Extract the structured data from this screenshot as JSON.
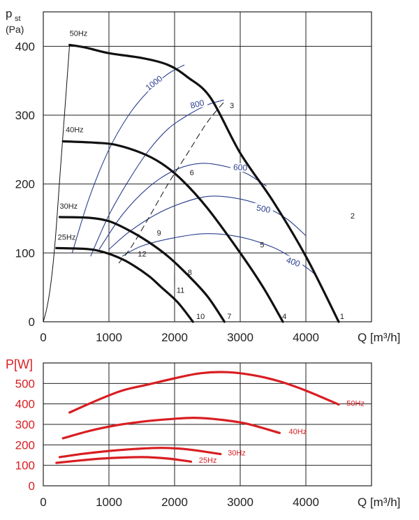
{
  "chart_data": [
    {
      "type": "line",
      "title": "",
      "ylabel_main": "p",
      "ylabel_sub": "st",
      "ylabel_unit": "(Pa)",
      "xlabel": "Q [m³/h]",
      "xlim": [
        0,
        5000
      ],
      "ylim": [
        0,
        450
      ],
      "xticks": [
        "0",
        "1000",
        "2000",
        "3000",
        "4000"
      ],
      "xtick_values": [
        0,
        1000,
        2000,
        3000,
        4000
      ],
      "yticks": [
        "0",
        "100",
        "200",
        "300",
        "400"
      ],
      "ytick_values": [
        0,
        100,
        200,
        300,
        400
      ],
      "series": [
        {
          "name": "50Hz",
          "x": [
            400,
            650,
            1000,
            1500,
            1900,
            2200,
            2550,
            3000,
            3500,
            4000,
            4500
          ],
          "y": [
            402,
            398,
            390,
            383,
            373,
            355,
            325,
            245,
            175,
            95,
            0
          ]
        },
        {
          "name": "40Hz",
          "x": [
            300,
            800,
            1100,
            1500,
            1800,
            2100,
            2500,
            3000,
            3350,
            3650
          ],
          "y": [
            262,
            260,
            257,
            245,
            230,
            207,
            165,
            100,
            50,
            0
          ]
        },
        {
          "name": "30Hz",
          "x": [
            250,
            700,
            1000,
            1300,
            1600,
            1900,
            2200,
            2500,
            2760
          ],
          "y": [
            152,
            151,
            146,
            133,
            116,
            95,
            68,
            37,
            0
          ]
        },
        {
          "name": "25Hz",
          "x": [
            200,
            600,
            800,
            1050,
            1300,
            1600,
            1800,
            2050,
            2280
          ],
          "y": [
            107,
            106,
            104,
            97,
            86,
            67,
            50,
            28,
            0
          ]
        }
      ],
      "series_labels": [
        "50Hz",
        "40Hz",
        "30Hz",
        "25Hz"
      ],
      "efficiency_curves": [
        {
          "label": "1000",
          "x": [
            440,
            700,
            1000,
            1300,
            1600,
            1900,
            2150
          ],
          "y": [
            100,
            180,
            250,
            300,
            335,
            360,
            373
          ]
        },
        {
          "label": "800",
          "x": [
            720,
            1000,
            1300,
            1600,
            1900,
            2200,
            2500,
            2750
          ],
          "y": [
            95,
            155,
            205,
            248,
            280,
            300,
            315,
            322
          ]
        },
        {
          "label": "600",
          "x": [
            850,
            1200,
            1600,
            2000,
            2400,
            2800,
            3100,
            3400
          ],
          "y": [
            105,
            155,
            195,
            220,
            230,
            225,
            215,
            197
          ]
        },
        {
          "label": "500",
          "x": [
            1000,
            1300,
            1700,
            2100,
            2500,
            2900,
            3300,
            3700,
            4000
          ],
          "y": [
            105,
            130,
            155,
            172,
            182,
            180,
            170,
            150,
            125
          ]
        },
        {
          "label": "400",
          "x": [
            1200,
            1500,
            2000,
            2500,
            3000,
            3500,
            3800,
            4100,
            4200
          ],
          "y": [
            95,
            110,
            122,
            128,
            123,
            108,
            92,
            72,
            60
          ]
        }
      ],
      "system_curve_label_points": [
        "1",
        "2",
        "3",
        "4",
        "5",
        "6",
        "7",
        "8",
        "9",
        "10",
        "11",
        "12"
      ],
      "stall_line": {
        "x": [
          0,
          50,
          100,
          150,
          200,
          260,
          330,
          400
        ],
        "y": [
          0,
          18,
          45,
          85,
          140,
          220,
          310,
          402
        ]
      },
      "dashed_line": {
        "x": [
          1150,
          1350,
          1600,
          1900,
          2200,
          2500,
          2780
        ],
        "y": [
          85,
          110,
          150,
          200,
          245,
          290,
          322
        ]
      }
    },
    {
      "type": "line",
      "ylabel": "P[W]",
      "xlabel": "Q [m³/h]",
      "xlim": [
        0,
        5000
      ],
      "ylim": [
        0,
        600
      ],
      "xticks": [
        "0",
        "1000",
        "2000",
        "3000",
        "4000"
      ],
      "xtick_values": [
        0,
        1000,
        2000,
        3000,
        4000
      ],
      "yticks": [
        "0",
        "100",
        "200",
        "300",
        "400",
        "500"
      ],
      "ytick_values": [
        0,
        100,
        200,
        300,
        400,
        500
      ],
      "series": [
        {
          "name": "50Hz",
          "x": [
            400,
            800,
            1200,
            1600,
            2000,
            2400,
            2800,
            3200,
            3600,
            4000,
            4500
          ],
          "y": [
            358,
            415,
            465,
            495,
            525,
            550,
            555,
            540,
            510,
            465,
            397
          ]
        },
        {
          "name": "40Hz",
          "x": [
            300,
            700,
            1100,
            1500,
            1900,
            2300,
            2700,
            3100,
            3600
          ],
          "y": [
            232,
            268,
            295,
            313,
            325,
            332,
            323,
            303,
            258
          ]
        },
        {
          "name": "30Hz",
          "x": [
            250,
            600,
            1000,
            1400,
            1800,
            2200,
            2700
          ],
          "y": [
            140,
            156,
            170,
            180,
            185,
            178,
            155
          ]
        },
        {
          "name": "25Hz",
          "x": [
            200,
            600,
            1000,
            1500,
            1900,
            2250
          ],
          "y": [
            112,
            125,
            135,
            140,
            133,
            118
          ]
        }
      ],
      "series_labels": [
        "50Hz",
        "40Hz",
        "30Hz",
        "25Hz"
      ]
    }
  ],
  "colors": {
    "grid": "#222222",
    "black_curve": "#111111",
    "blue_curve": "#2a3f8f",
    "red_curve": "#d81e22"
  }
}
